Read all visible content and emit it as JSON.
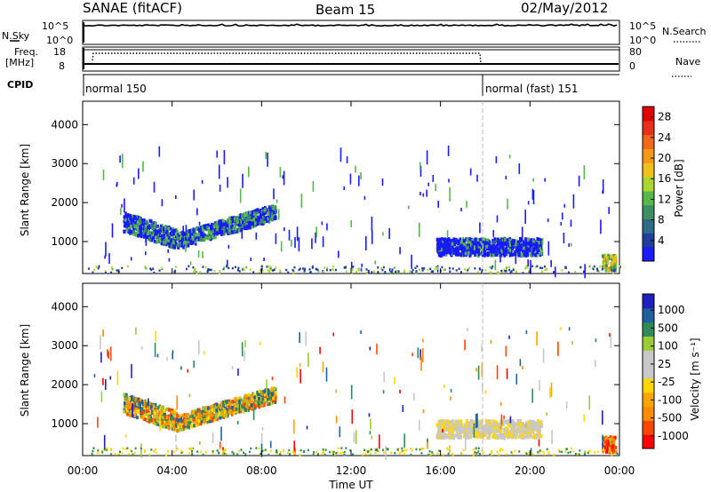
{
  "header": {
    "title": "SANAE (fitACF)",
    "beam": "Beam 15",
    "date": "02/May/2012"
  },
  "top_panels": {
    "nsky_label": "N.Sky",
    "nsky_ticks": [
      "10^5",
      "10^0"
    ],
    "nsearch_label": "N.Search",
    "nsearch_ticks": [
      "10^5",
      "10^0"
    ],
    "freq_label_1": "Freq.",
    "freq_label_2": "[MHz]",
    "freq_ticks": [
      "18",
      "8"
    ],
    "nave_label": "Nave",
    "nave_ticks": [
      "80",
      "0"
    ],
    "cpid_label": "CPID",
    "cpid_segments": [
      {
        "label": "normal 150",
        "start": 0,
        "end": 18
      },
      {
        "label": "normal (fast) 151",
        "start": 18,
        "end": 24
      }
    ]
  },
  "colors": {
    "power_scale": [
      "#1a1aff",
      "#1f3f9f",
      "#2e6b88",
      "#3b8f63",
      "#56b848",
      "#a8d830",
      "#f0c018",
      "#f89818",
      "#f06818",
      "#e83018",
      "#e00000"
    ],
    "velocity_scale": [
      "#ff0000",
      "#ff4500",
      "#ff8c00",
      "#ffa500",
      "#ffd700",
      "#c8c8c8",
      "#c8c8c8",
      "#9acd32",
      "#2e8b57",
      "#1e60a0",
      "#2020c0"
    ]
  },
  "chart_data": [
    {
      "type": "heatmap",
      "name": "power",
      "xlabel": "",
      "ylabel": "Slant Range [km]",
      "xlim": [
        0,
        24
      ],
      "ylim": [
        180,
        4600
      ],
      "yticks": [
        "1000",
        "2000",
        "3000",
        "4000"
      ],
      "ytick_values": [
        1000,
        2000,
        3000,
        4000
      ],
      "colorbar_label": "Power [dB]",
      "colorbar_ticks": [
        "4",
        "8",
        "12",
        "16",
        "20",
        "24",
        "28"
      ],
      "colorbar_range": [
        0,
        30
      ],
      "clusters": [
        {
          "t0": 1.8,
          "t1": 4.2,
          "r_center": 1400,
          "r_halfwidth": 250,
          "level": 10
        },
        {
          "t0": 4.2,
          "t1": 8.6,
          "r_center": 1500,
          "r_halfwidth": 200,
          "level": 10
        },
        {
          "t0": 15.8,
          "t1": 20.5,
          "r_center": 900,
          "r_halfwidth": 220,
          "level": 8
        },
        {
          "t0": 23.2,
          "t1": 23.8,
          "r_center": 500,
          "r_halfwidth": 200,
          "level": 16
        }
      ]
    },
    {
      "type": "heatmap",
      "name": "velocity",
      "xlabel": "Time UT",
      "ylabel": "Slant Range [km]",
      "xlim": [
        0,
        24
      ],
      "ylim": [
        180,
        4600
      ],
      "xticks": [
        "00:00",
        "04:00",
        "08:00",
        "12:00",
        "16:00",
        "20:00",
        "00:00"
      ],
      "xtick_values": [
        0,
        4,
        8,
        12,
        16,
        20,
        24
      ],
      "yticks": [
        "1000",
        "2000",
        "3000",
        "4000"
      ],
      "ytick_values": [
        1000,
        2000,
        3000,
        4000
      ],
      "colorbar_label": "Velocity [m s⁻¹]",
      "colorbar_ticks": [
        "1000",
        "500",
        "100",
        "25",
        "-25",
        "-100",
        "-500",
        "-1000"
      ],
      "clusters": [
        {
          "t0": 1.8,
          "t1": 4.2,
          "r_center": 1400,
          "r_halfwidth": 250,
          "level": "mixed"
        },
        {
          "t0": 4.2,
          "t1": 8.6,
          "r_center": 1500,
          "r_halfwidth": 200,
          "level": "mixed"
        },
        {
          "t0": 15.8,
          "t1": 20.5,
          "r_center": 900,
          "r_halfwidth": 220,
          "level": "near-zero/negative"
        },
        {
          "t0": 23.2,
          "t1": 23.8,
          "r_center": 500,
          "r_halfwidth": 200,
          "level": "negative"
        }
      ]
    }
  ]
}
